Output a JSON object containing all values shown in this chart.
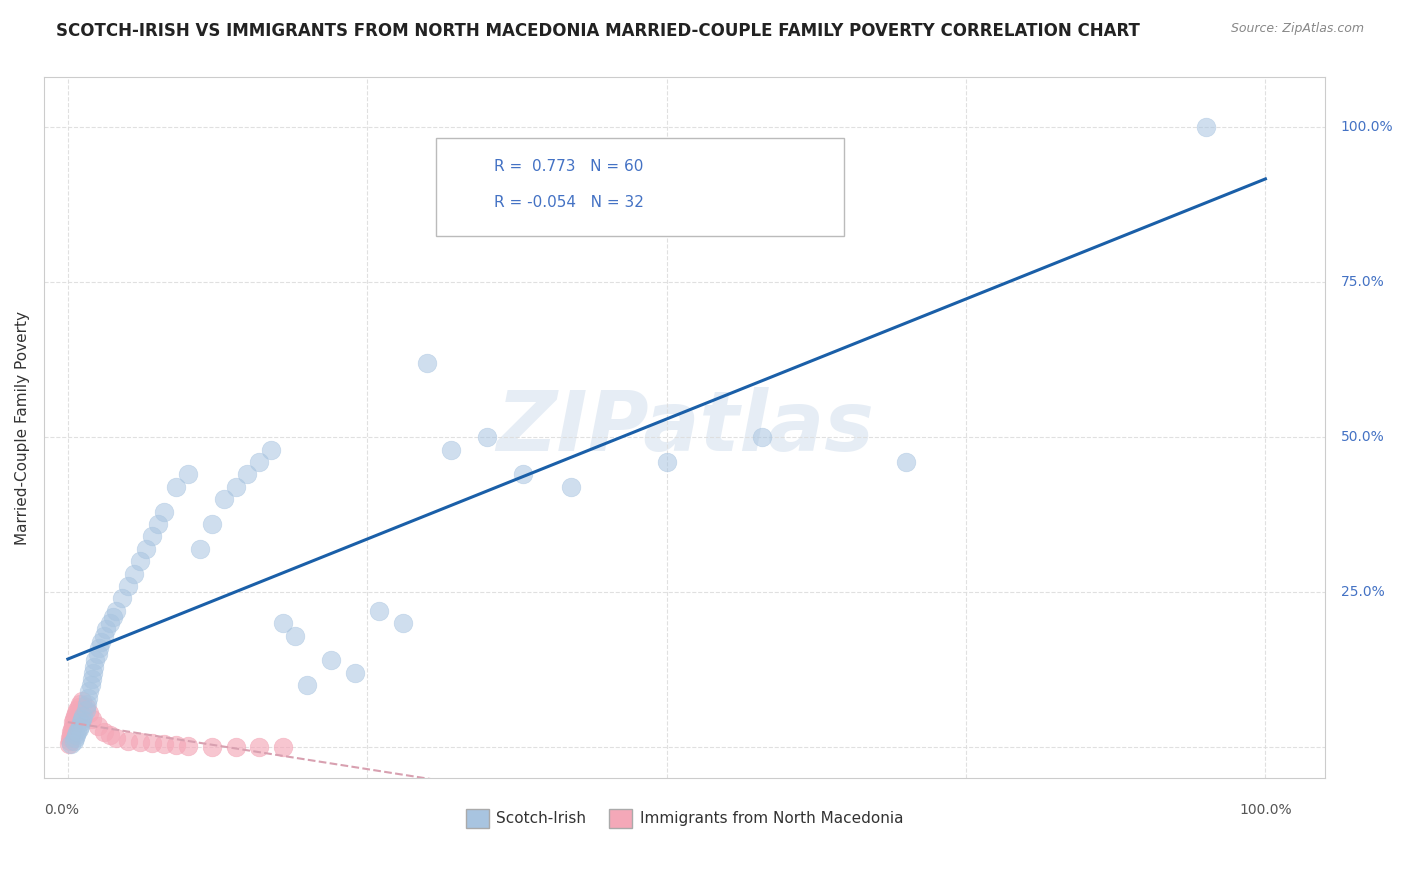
{
  "title": "SCOTCH-IRISH VS IMMIGRANTS FROM NORTH MACEDONIA MARRIED-COUPLE FAMILY POVERTY CORRELATION CHART",
  "source": "Source: ZipAtlas.com",
  "ylabel": "Married-Couple Family Poverty",
  "legend_labels": [
    "Scotch-Irish",
    "Immigrants from North Macedonia"
  ],
  "r_scotch_irish": 0.773,
  "n_scotch_irish": 60,
  "r_north_macedonia": -0.054,
  "n_north_macedonia": 32,
  "color_scotch_irish": "#a8c4e0",
  "color_north_macedonia": "#f4a8b8",
  "line_color_scotch_irish": "#1a5fa8",
  "line_color_north_macedonia": "#d8a0b0",
  "background_color": "#ffffff",
  "grid_color": "#dddddd",
  "axis_color": "#cccccc",
  "scotch_irish_x": [
    0.3,
    0.5,
    0.6,
    0.7,
    0.8,
    0.9,
    1.0,
    1.1,
    1.2,
    1.3,
    1.5,
    1.6,
    1.7,
    1.8,
    1.9,
    2.0,
    2.1,
    2.2,
    2.3,
    2.5,
    2.6,
    2.8,
    3.0,
    3.2,
    3.5,
    3.8,
    4.0,
    4.5,
    5.0,
    5.5,
    6.0,
    6.5,
    7.0,
    7.5,
    8.0,
    9.0,
    10.0,
    11.0,
    12.0,
    13.0,
    14.0,
    15.0,
    16.0,
    17.0,
    18.0,
    19.0,
    20.0,
    22.0,
    24.0,
    26.0,
    28.0,
    30.0,
    32.0,
    35.0,
    38.0,
    42.0,
    50.0,
    58.0,
    70.0,
    95.0
  ],
  "scotch_irish_y": [
    0.5,
    1.0,
    1.5,
    2.0,
    2.5,
    3.0,
    3.5,
    4.0,
    4.5,
    5.0,
    6.0,
    7.0,
    8.0,
    9.0,
    10.0,
    11.0,
    12.0,
    13.0,
    14.0,
    15.0,
    16.0,
    17.0,
    18.0,
    19.0,
    20.0,
    21.0,
    22.0,
    24.0,
    26.0,
    28.0,
    30.0,
    32.0,
    34.0,
    36.0,
    38.0,
    42.0,
    44.0,
    32.0,
    36.0,
    40.0,
    42.0,
    44.0,
    46.0,
    48.0,
    20.0,
    18.0,
    10.0,
    14.0,
    12.0,
    22.0,
    20.0,
    62.0,
    48.0,
    50.0,
    44.0,
    42.0,
    46.0,
    50.0,
    46.0,
    100.0
  ],
  "north_macedonia_x": [
    0.1,
    0.15,
    0.2,
    0.25,
    0.3,
    0.35,
    0.4,
    0.45,
    0.5,
    0.6,
    0.7,
    0.8,
    0.9,
    1.0,
    1.2,
    1.5,
    1.8,
    2.0,
    2.5,
    3.0,
    3.5,
    4.0,
    5.0,
    6.0,
    7.0,
    8.0,
    9.0,
    10.0,
    12.0,
    14.0,
    16.0,
    18.0
  ],
  "north_macedonia_y": [
    0.5,
    1.0,
    1.5,
    2.0,
    2.5,
    3.0,
    3.5,
    4.0,
    4.5,
    5.0,
    5.5,
    6.0,
    6.5,
    7.0,
    7.5,
    6.5,
    5.5,
    4.5,
    3.5,
    2.5,
    2.0,
    1.5,
    1.0,
    0.8,
    0.6,
    0.5,
    0.3,
    0.2,
    0.1,
    0.1,
    0.05,
    0.05
  ]
}
